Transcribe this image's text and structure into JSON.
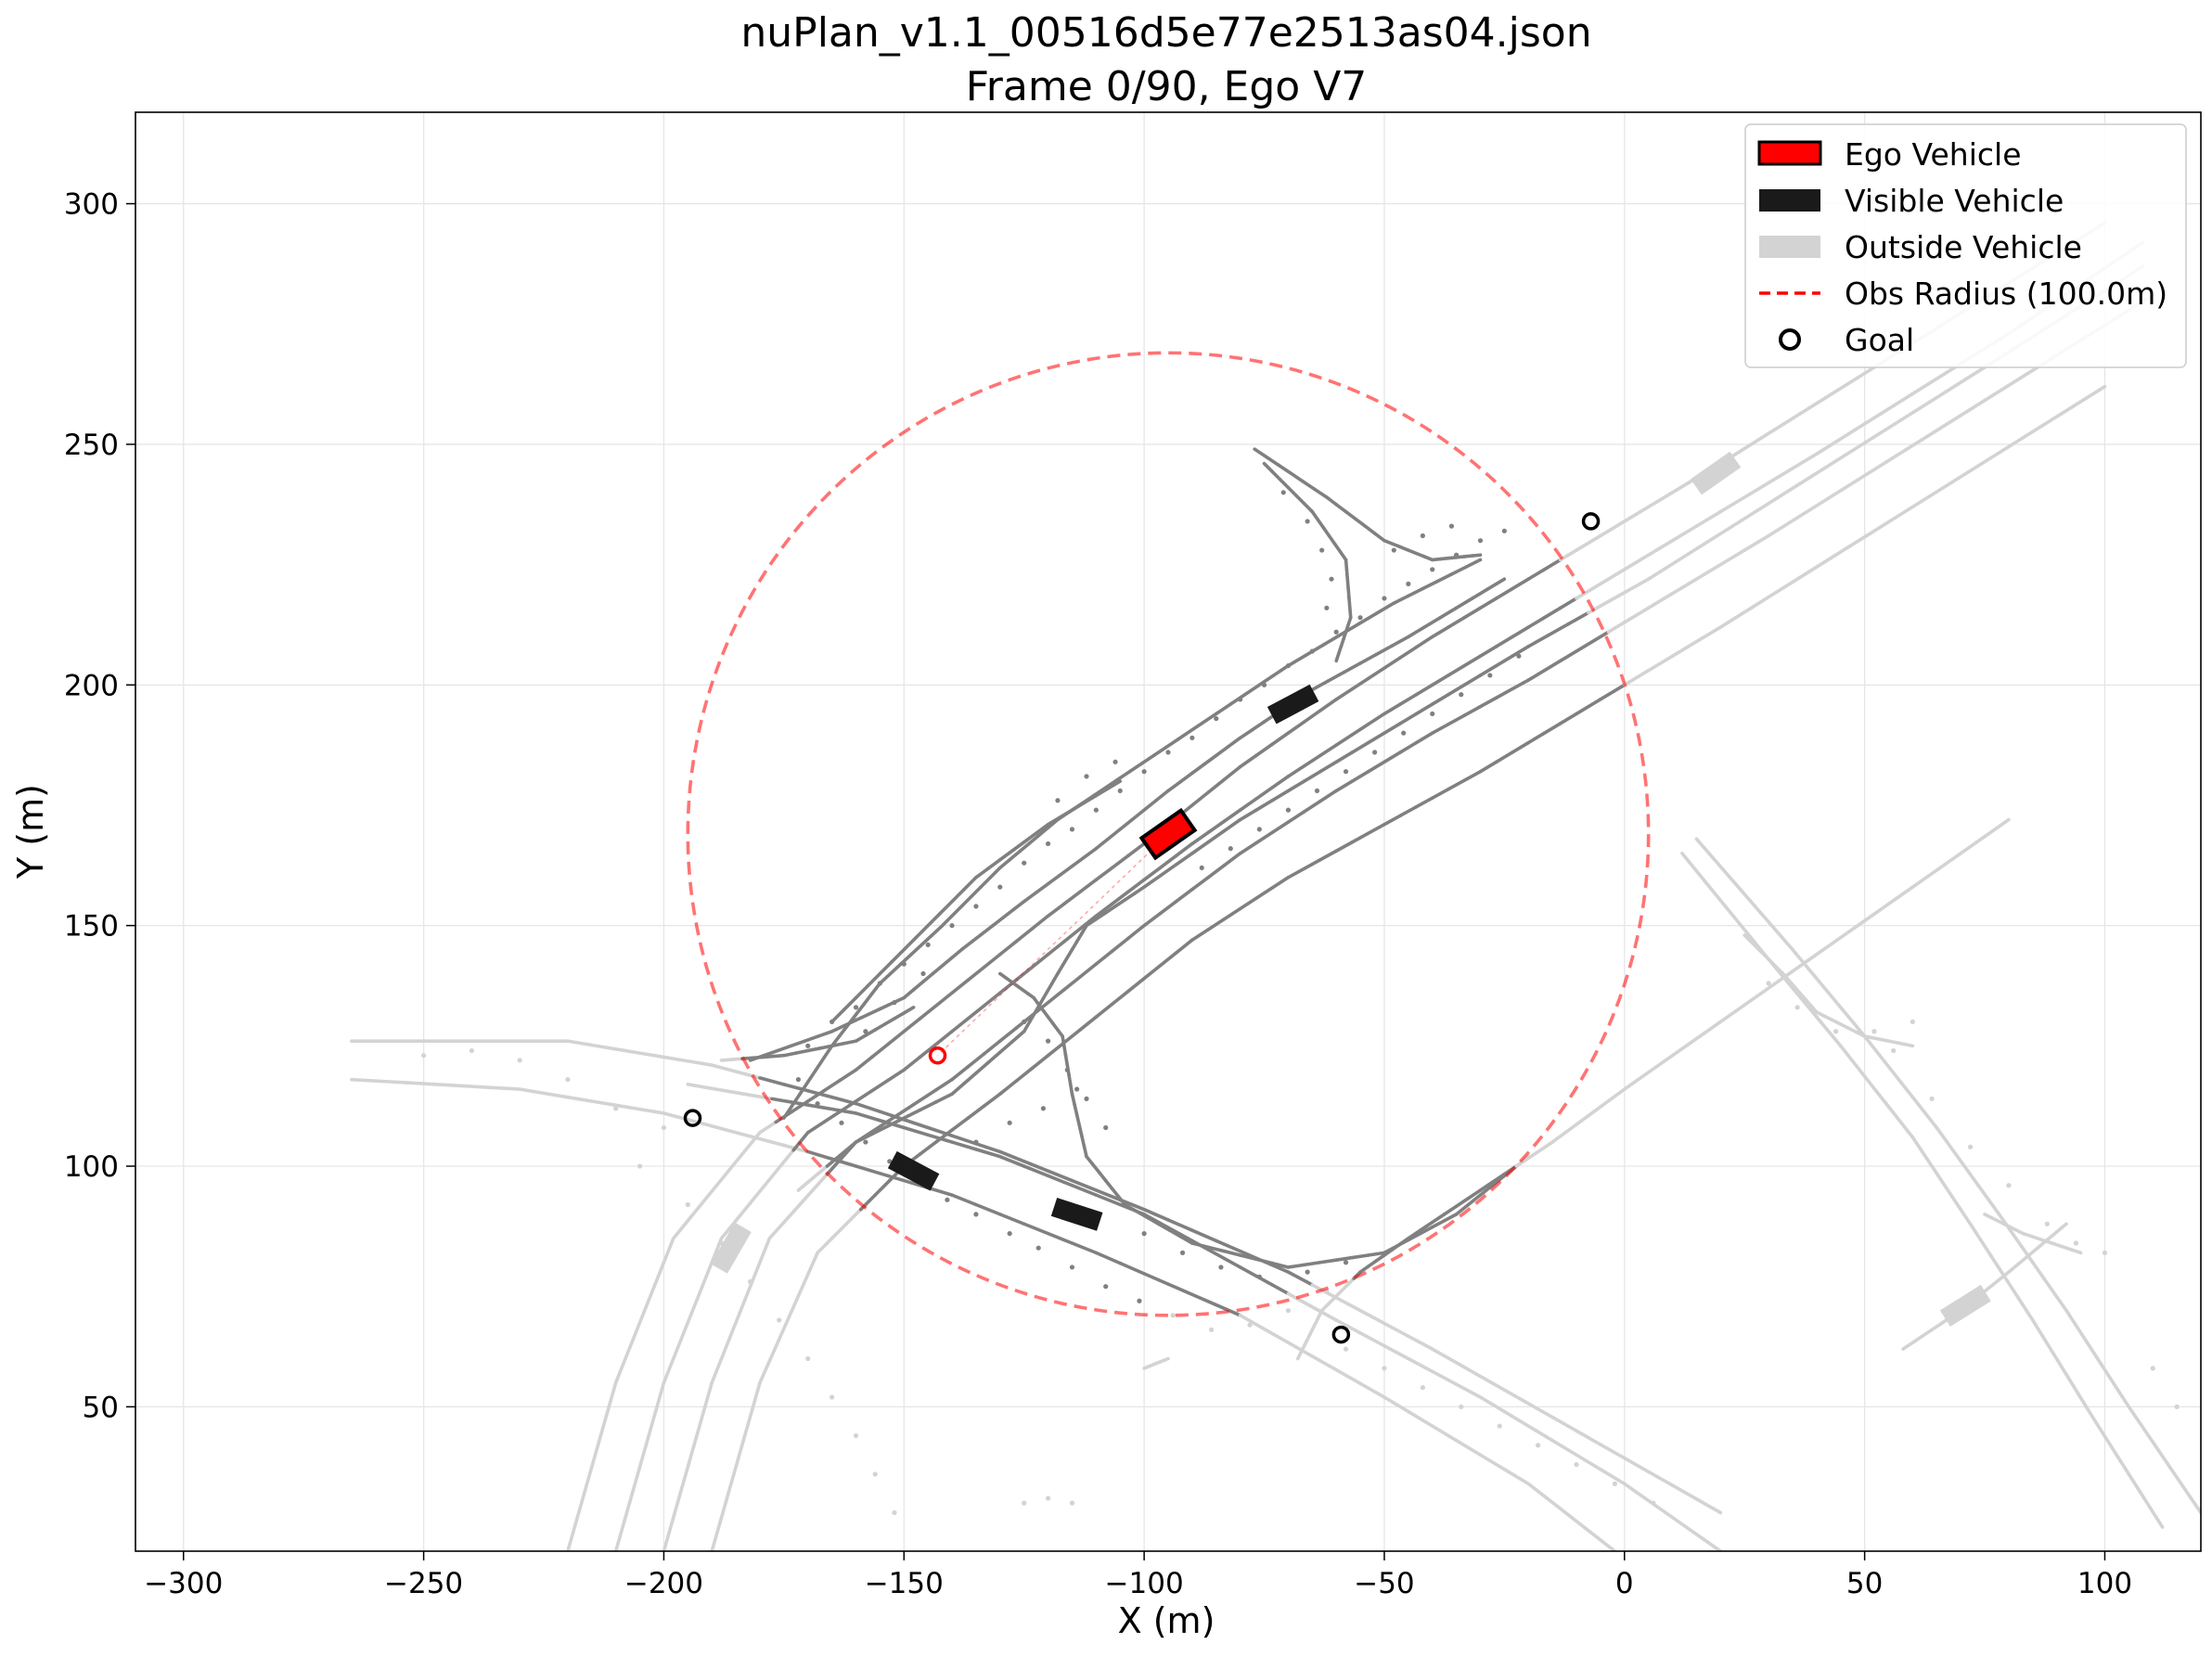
{
  "chart_data": {
    "type": "scatter",
    "title": "nuPlan_v1.1_00516d5e77e2513as04.json",
    "subtitle": "Frame 0/90, Ego V7",
    "xlabel": "X (m)",
    "ylabel": "Y (m)",
    "xlim": [
      -310,
      120
    ],
    "ylim": [
      20,
      319
    ],
    "xticks": [
      -300,
      -250,
      -200,
      -150,
      -100,
      -50,
      0,
      50,
      100
    ],
    "yticks": [
      50,
      100,
      150,
      200,
      250,
      300
    ],
    "xtick_labels": [
      "−300",
      "−250",
      "−200",
      "−150",
      "−100",
      "−50",
      "0",
      "50",
      "100"
    ],
    "ytick_labels": [
      "50",
      "100",
      "150",
      "200",
      "250",
      "300"
    ],
    "grid": true,
    "legend_position": "top-right",
    "legend": [
      {
        "label": "Ego Vehicle",
        "kind": "ego"
      },
      {
        "label": "Visible Vehicle",
        "kind": "visible"
      },
      {
        "label": "Outside Vehicle",
        "kind": "outside"
      },
      {
        "label": "Obs Radius (100.0m)",
        "kind": "radius"
      },
      {
        "label": "Goal",
        "kind": "goal"
      }
    ],
    "obs_circle": {
      "center": [
        -95,
        169
      ],
      "radius": 100
    },
    "ego_vehicle": {
      "center": [
        -95,
        169
      ],
      "heading_deg": 35,
      "length": 10,
      "width": 5
    },
    "ego_goal": [
      -143,
      123
    ],
    "visible_vehicles": [
      {
        "center": [
          -69,
          196
        ],
        "heading_deg": 28,
        "length": 10,
        "width": 4
      },
      {
        "center": [
          -148,
          99
        ],
        "heading_deg": -28,
        "length": 10,
        "width": 4
      },
      {
        "center": [
          -114,
          90
        ],
        "heading_deg": -18,
        "length": 10,
        "width": 4
      }
    ],
    "outside_vehicles": [
      {
        "center": [
          19,
          244
        ],
        "heading_deg": 35,
        "length": 10,
        "width": 4
      },
      {
        "center": [
          -186,
          83
        ],
        "heading_deg": 60,
        "length": 10,
        "width": 4
      },
      {
        "center": [
          71,
          71
        ],
        "heading_deg": 32,
        "length": 10,
        "width": 4
      }
    ],
    "goals": [
      [
        -7,
        234
      ],
      [
        -194,
        110
      ],
      [
        -59,
        65
      ]
    ],
    "lane_lines": [
      [
        [
          -195,
          117
        ],
        [
          -160,
          111
        ],
        [
          -130,
          102
        ],
        [
          -100,
          90
        ],
        [
          -80,
          79
        ],
        [
          -60,
          68
        ],
        [
          -30,
          52
        ],
        [
          0,
          34
        ],
        [
          20,
          20
        ]
      ],
      [
        [
          -265,
          126
        ],
        [
          -220,
          126
        ],
        [
          -190,
          121
        ],
        [
          -160,
          113
        ],
        [
          -130,
          103
        ],
        [
          -100,
          91
        ],
        [
          -70,
          78
        ],
        [
          -40,
          62
        ],
        [
          -10,
          45
        ],
        [
          20,
          28
        ]
      ],
      [
        [
          -265,
          118
        ],
        [
          -230,
          116
        ],
        [
          -200,
          111
        ],
        [
          -170,
          103
        ],
        [
          -140,
          94
        ],
        [
          -110,
          82
        ],
        [
          -80,
          69
        ],
        [
          -50,
          52
        ],
        [
          -20,
          34
        ],
        [
          -2,
          20
        ]
      ],
      [
        [
          -220,
          20
        ],
        [
          -210,
          55
        ],
        [
          -198,
          85
        ],
        [
          -180,
          107
        ],
        [
          -160,
          120
        ],
        [
          -140,
          136
        ],
        [
          -120,
          152
        ],
        [
          -100,
          167
        ],
        [
          -80,
          183
        ],
        [
          -60,
          197
        ],
        [
          -40,
          210
        ],
        [
          -20,
          222
        ],
        [
          0,
          234
        ],
        [
          20,
          246
        ],
        [
          60,
          271
        ],
        [
          100,
          296
        ]
      ],
      [
        [
          -210,
          20
        ],
        [
          -200,
          55
        ],
        [
          -188,
          85
        ],
        [
          -170,
          107
        ],
        [
          -150,
          120
        ],
        [
          -130,
          136
        ],
        [
          -110,
          152
        ],
        [
          -90,
          167
        ],
        [
          -70,
          181
        ],
        [
          -50,
          194
        ],
        [
          -30,
          206
        ],
        [
          -10,
          218
        ],
        [
          10,
          230
        ],
        [
          40,
          248
        ],
        [
          80,
          273
        ],
        [
          108,
          292
        ]
      ],
      [
        [
          -200,
          20
        ],
        [
          -190,
          55
        ],
        [
          -178,
          85
        ],
        [
          -160,
          105
        ],
        [
          -140,
          118
        ],
        [
          -120,
          134
        ],
        [
          -100,
          150
        ],
        [
          -80,
          165
        ],
        [
          -60,
          178
        ],
        [
          -40,
          190
        ],
        [
          -20,
          201
        ],
        [
          0,
          213
        ],
        [
          30,
          231
        ],
        [
          70,
          256
        ],
        [
          110,
          281
        ]
      ],
      [
        [
          -190,
          20
        ],
        [
          -180,
          55
        ],
        [
          -168,
          82
        ],
        [
          -150,
          100
        ],
        [
          -130,
          115
        ],
        [
          -110,
          131
        ],
        [
          -90,
          147
        ],
        [
          -70,
          160
        ],
        [
          -50,
          171
        ],
        [
          -30,
          182
        ],
        [
          -10,
          194
        ],
        [
          20,
          212
        ],
        [
          60,
          237
        ],
        [
          100,
          262
        ]
      ],
      [
        [
          -172,
          95
        ],
        [
          -160,
          105
        ],
        [
          -140,
          115
        ],
        [
          -125,
          128
        ],
        [
          -118,
          140
        ],
        [
          -112,
          150
        ],
        [
          -100,
          158
        ],
        [
          -80,
          172
        ],
        [
          -60,
          184
        ],
        [
          -40,
          196
        ],
        [
          -20,
          208
        ],
        [
          5,
          222
        ],
        [
          40,
          244
        ],
        [
          75,
          266
        ],
        [
          108,
          287
        ]
      ],
      [
        [
          -182,
          122
        ],
        [
          -165,
          128
        ],
        [
          -150,
          135
        ],
        [
          -138,
          145
        ],
        [
          -125,
          155
        ],
        [
          -110,
          166
        ],
        [
          -95,
          178
        ],
        [
          -80,
          189
        ],
        [
          -65,
          199
        ],
        [
          -45,
          210
        ],
        [
          -25,
          222
        ]
      ],
      [
        [
          -175,
          110
        ],
        [
          -165,
          125
        ],
        [
          -155,
          138
        ],
        [
          -142,
          150
        ],
        [
          -130,
          162
        ],
        [
          -118,
          172
        ],
        [
          -103,
          182
        ],
        [
          -88,
          192
        ],
        [
          -70,
          204
        ],
        [
          -48,
          217
        ],
        [
          -30,
          226
        ]
      ],
      [
        [
          -165,
          130
        ],
        [
          -150,
          145
        ],
        [
          -135,
          160
        ],
        [
          -120,
          171
        ],
        [
          -105,
          180
        ]
      ],
      [
        [
          -188,
          122
        ],
        [
          -175,
          123
        ],
        [
          -160,
          126
        ],
        [
          -148,
          133
        ]
      ],
      [
        [
          -75,
          246
        ],
        [
          -65,
          236
        ],
        [
          -58,
          226
        ],
        [
          -57,
          214
        ],
        [
          -60,
          205
        ]
      ],
      [
        [
          -77,
          249
        ],
        [
          -62,
          239
        ],
        [
          -50,
          230
        ],
        [
          -40,
          226
        ],
        [
          -30,
          227
        ]
      ],
      [
        [
          -100,
          58
        ],
        [
          -95,
          60
        ]
      ],
      [
        [
          -130,
          140
        ],
        [
          -123,
          135
        ],
        [
          -117,
          127
        ],
        [
          -115,
          115
        ],
        [
          -112,
          102
        ],
        [
          -104,
          92
        ],
        [
          -90,
          84
        ],
        [
          -70,
          79
        ],
        [
          -50,
          82
        ],
        [
          -35,
          90
        ],
        [
          -20,
          102
        ]
      ],
      [
        [
          -68,
          60
        ],
        [
          -63,
          70
        ],
        [
          -55,
          78
        ],
        [
          -45,
          85
        ],
        [
          -30,
          95
        ],
        [
          -15,
          105
        ],
        [
          0,
          116
        ],
        [
          20,
          130
        ],
        [
          40,
          144
        ],
        [
          60,
          158
        ],
        [
          80,
          172
        ]
      ],
      [
        [
          15,
          168
        ],
        [
          35,
          145
        ],
        [
          50,
          127
        ],
        [
          65,
          108
        ],
        [
          78,
          90
        ],
        [
          92,
          70
        ],
        [
          105,
          50
        ],
        [
          120,
          28
        ]
      ],
      [
        [
          12,
          165
        ],
        [
          30,
          143
        ],
        [
          45,
          125
        ],
        [
          60,
          106
        ],
        [
          72,
          88
        ],
        [
          85,
          68
        ],
        [
          98,
          47
        ],
        [
          112,
          25
        ]
      ],
      [
        [
          25,
          148
        ],
        [
          33,
          140
        ],
        [
          40,
          132
        ],
        [
          50,
          127
        ],
        [
          60,
          125
        ]
      ],
      [
        [
          58,
          62
        ],
        [
          70,
          70
        ],
        [
          80,
          78
        ],
        [
          92,
          88
        ]
      ],
      [
        [
          75,
          90
        ],
        [
          83,
          86
        ],
        [
          95,
          82
        ]
      ]
    ],
    "lane_dots": [
      [
        -172,
        118
      ],
      [
        -168,
        113
      ],
      [
        -163,
        109
      ],
      [
        -158,
        105
      ],
      [
        -153,
        101
      ],
      [
        -147,
        97
      ],
      [
        -141,
        93
      ],
      [
        -135,
        90
      ],
      [
        -128,
        86
      ],
      [
        -122,
        83
      ],
      [
        -115,
        79
      ],
      [
        -108,
        75
      ],
      [
        -101,
        72
      ],
      [
        -94,
        69
      ],
      [
        -86,
        66
      ],
      [
        -78,
        67
      ],
      [
        -70,
        70
      ],
      [
        -62,
        74
      ],
      [
        -170,
        125
      ],
      [
        -165,
        130
      ],
      [
        -160,
        133
      ],
      [
        -155,
        138
      ],
      [
        -150,
        142
      ],
      [
        -145,
        146
      ],
      [
        -140,
        150
      ],
      [
        -135,
        154
      ],
      [
        -130,
        158
      ],
      [
        -125,
        163
      ],
      [
        -120,
        167
      ],
      [
        -115,
        170
      ],
      [
        -110,
        174
      ],
      [
        -105,
        178
      ],
      [
        -100,
        182
      ],
      [
        -95,
        186
      ],
      [
        -90,
        189
      ],
      [
        -85,
        193
      ],
      [
        -80,
        197
      ],
      [
        -75,
        200
      ],
      [
        -70,
        204
      ],
      [
        -65,
        207
      ],
      [
        -60,
        211
      ],
      [
        -55,
        214
      ],
      [
        -50,
        218
      ],
      [
        -45,
        221
      ],
      [
        -40,
        224
      ],
      [
        -35,
        227
      ],
      [
        -30,
        230
      ],
      [
        -25,
        232
      ],
      [
        -135,
        105
      ],
      [
        -128,
        109
      ],
      [
        -121,
        112
      ],
      [
        -114,
        116
      ],
      [
        -125,
        130
      ],
      [
        -120,
        126
      ],
      [
        -116,
        120
      ],
      [
        -112,
        114
      ],
      [
        -108,
        108
      ],
      [
        -88,
        162
      ],
      [
        -82,
        166
      ],
      [
        -76,
        170
      ],
      [
        -70,
        174
      ],
      [
        -64,
        178
      ],
      [
        -58,
        182
      ],
      [
        -52,
        186
      ],
      [
        -46,
        190
      ],
      [
        -40,
        194
      ],
      [
        -34,
        198
      ],
      [
        -28,
        202
      ],
      [
        -22,
        206
      ],
      [
        -62,
        216
      ],
      [
        -61,
        222
      ],
      [
        -63,
        228
      ],
      [
        -66,
        234
      ],
      [
        -71,
        240
      ],
      [
        -48,
        228
      ],
      [
        -42,
        231
      ],
      [
        -36,
        233
      ],
      [
        -118,
        176
      ],
      [
        -112,
        181
      ],
      [
        -106,
        184
      ],
      [
        -146,
        140
      ],
      [
        -152,
        134
      ],
      [
        -158,
        128
      ],
      [
        -100,
        86
      ],
      [
        -92,
        82
      ],
      [
        -84,
        79
      ],
      [
        -76,
        77
      ],
      [
        -66,
        78
      ],
      [
        -58,
        80
      ],
      [
        -200,
        108
      ],
      [
        -210,
        112
      ],
      [
        -220,
        118
      ],
      [
        -230,
        122
      ],
      [
        -240,
        124
      ],
      [
        -250,
        123
      ],
      [
        -205,
        100
      ],
      [
        -195,
        92
      ],
      [
        -188,
        84
      ],
      [
        -182,
        76
      ],
      [
        -176,
        68
      ],
      [
        -170,
        60
      ],
      [
        -165,
        52
      ],
      [
        -160,
        44
      ],
      [
        -156,
        36
      ],
      [
        -152,
        28
      ],
      [
        -58,
        62
      ],
      [
        -50,
        58
      ],
      [
        -42,
        54
      ],
      [
        -34,
        50
      ],
      [
        -26,
        46
      ],
      [
        -18,
        42
      ],
      [
        -10,
        38
      ],
      [
        -2,
        34
      ],
      [
        6,
        30
      ],
      [
        30,
        138
      ],
      [
        36,
        133
      ],
      [
        44,
        128
      ],
      [
        52,
        128
      ],
      [
        60,
        130
      ],
      [
        88,
        88
      ],
      [
        94,
        84
      ],
      [
        100,
        82
      ],
      [
        80,
        96
      ],
      [
        72,
        104
      ],
      [
        64,
        114
      ],
      [
        56,
        124
      ],
      [
        110,
        58
      ],
      [
        115,
        50
      ],
      [
        -125,
        30
      ],
      [
        -120,
        31
      ],
      [
        -115,
        30
      ]
    ]
  }
}
